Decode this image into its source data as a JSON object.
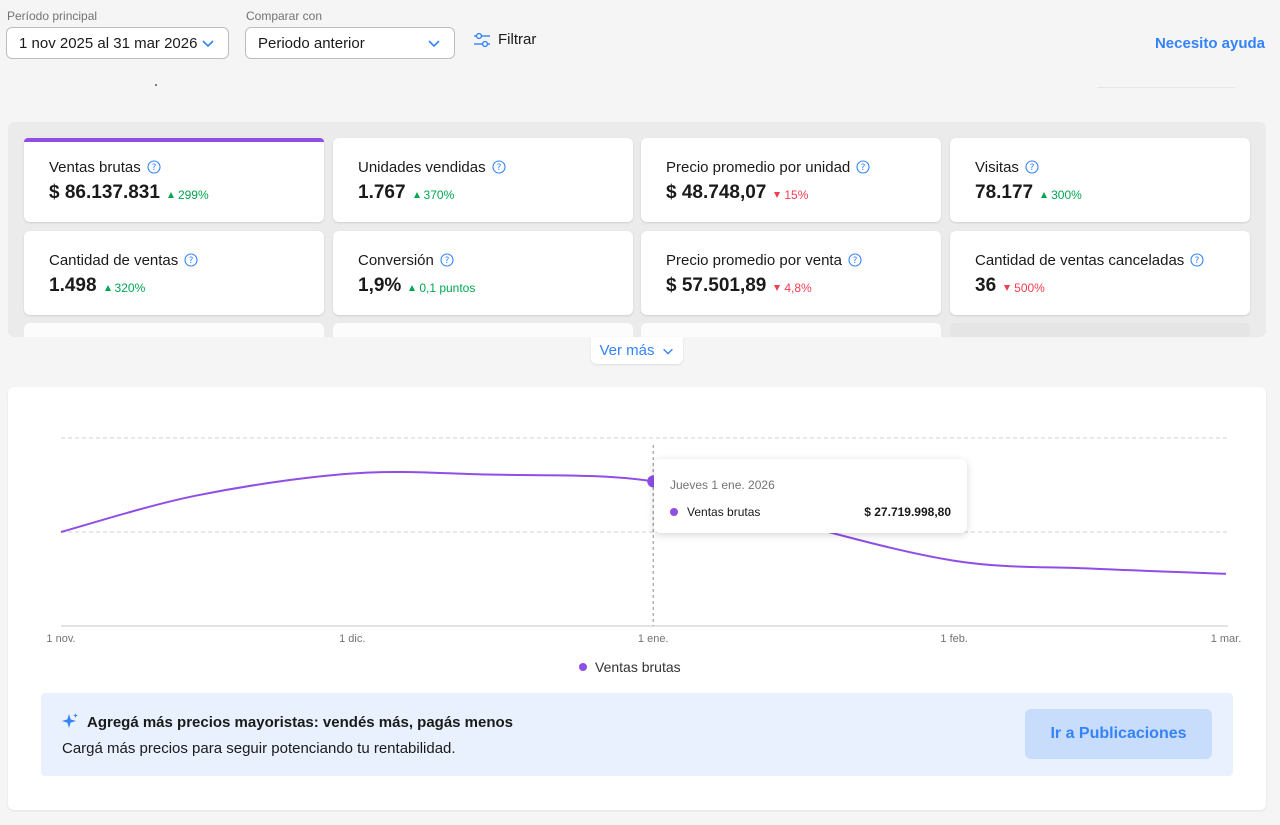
{
  "header": {
    "period_label": "Período principal",
    "period_value": "1 nov 2025 al 31 mar 2026",
    "compare_label": "Comparar con",
    "compare_value": "Periodo anterior",
    "filter_label": "Filtrar",
    "help_label": "Necesito ayuda"
  },
  "metrics": [
    {
      "title": "Ventas brutas",
      "value": "$ 86.137.831",
      "delta": "299%",
      "direction": "up",
      "active": true
    },
    {
      "title": "Unidades vendidas",
      "value": "1.767",
      "delta": "370%",
      "direction": "up"
    },
    {
      "title": "Precio promedio por unidad",
      "value": "$ 48.748,07",
      "delta": "15%",
      "direction": "down"
    },
    {
      "title": "Visitas",
      "value": "78.177",
      "delta": "300%",
      "direction": "up"
    },
    {
      "title": "Cantidad de ventas",
      "value": "1.498",
      "delta": "320%",
      "direction": "up"
    },
    {
      "title": "Conversión",
      "value": "1,9%",
      "delta": "0,1 puntos",
      "direction": "up"
    },
    {
      "title": "Precio promedio por venta",
      "value": "$ 57.501,89",
      "delta": "4,8%",
      "direction": "down"
    },
    {
      "title": "Cantidad de ventas canceladas",
      "value": "36",
      "delta": "500%",
      "direction": "down"
    }
  ],
  "ver_mas_label": "Ver más",
  "chart_data": {
    "type": "line",
    "x_tick_labels": [
      "1 nov.",
      "1 dic.",
      "1 ene.",
      "1 feb.",
      "1 mar."
    ],
    "series": [
      {
        "name": "Ventas brutas",
        "color": "#8f4ee6",
        "points": [
          {
            "date": "2025-11-01",
            "value": 18000000
          },
          {
            "date": "2025-11-15",
            "value": 25000000
          },
          {
            "date": "2025-12-01",
            "value": 29200000
          },
          {
            "date": "2025-12-15",
            "value": 29000000
          },
          {
            "date": "2026-01-01",
            "value": 27700000
          },
          {
            "date": "2026-01-15",
            "value": 20000000
          },
          {
            "date": "2026-02-01",
            "value": 12500000
          },
          {
            "date": "2026-02-15",
            "value": 11000000
          },
          {
            "date": "2026-03-01",
            "value": 10000000
          }
        ]
      }
    ],
    "grid": true,
    "legend": "bottom",
    "tooltip": {
      "date": "Jueves 1 ene. 2026",
      "series": "Ventas brutas",
      "value": "$ 27.719.998,80",
      "at_date": "2026-01-01"
    }
  },
  "banner": {
    "title": "Agregá más precios mayoristas: vendés más, pagás menos",
    "subtitle": "Cargá más precios para seguir potenciando tu rentabilidad.",
    "button_label": "Ir a Publicaciones"
  }
}
